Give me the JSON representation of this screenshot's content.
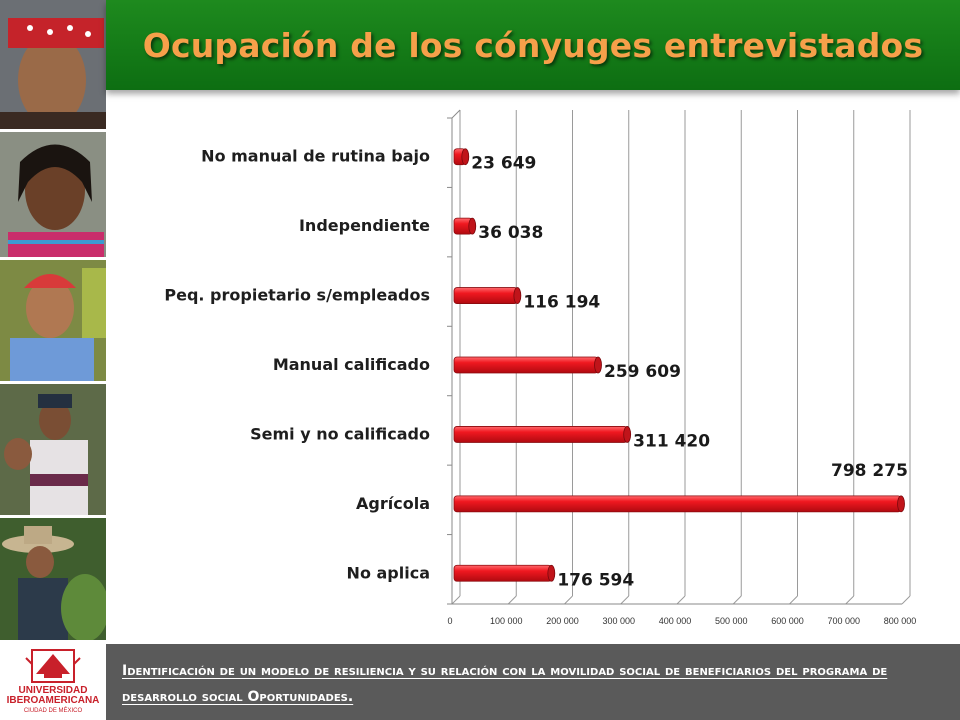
{
  "header": {
    "title": "Ocupación de los cónyuges entrevistados"
  },
  "footer": {
    "text": "Identificación de un modelo de resiliencia y su relación con la movilidad social de beneficiarios del programa de desarrollo social Oportunidades.",
    "logo_line1": "UNIVERSIDAD",
    "logo_line2": "IBEROAMERICANA",
    "logo_line3": "CIUDAD DE MÉXICO"
  },
  "photos": [
    {
      "name": "photo-elder-man"
    },
    {
      "name": "photo-woman"
    },
    {
      "name": "photo-man-cap"
    },
    {
      "name": "photo-woman-child"
    },
    {
      "name": "photo-farmer-hat"
    }
  ],
  "colors": {
    "header": "#1e8a1e",
    "title": "#f6a04a",
    "bar": "#e8121a",
    "bar_dark": "#a80a10",
    "footer": "#5a5a5a"
  },
  "chart_data": {
    "type": "bar",
    "orientation": "horizontal",
    "title": "",
    "categories": [
      "No manual de rutina bajo",
      "Independiente",
      "Peq. propietario s/empleados",
      "Manual calificado",
      "Semi y no calificado",
      "Agrícola",
      "No aplica"
    ],
    "values": [
      23649,
      36038,
      116194,
      259609,
      311420,
      798275,
      176594
    ],
    "value_labels": [
      "23 649",
      "36 038",
      "116 194",
      "259 609",
      "311 420",
      "798 275",
      "176 594"
    ],
    "xlim": [
      0,
      800000
    ],
    "xticks": [
      0,
      100000,
      200000,
      300000,
      400000,
      500000,
      600000,
      700000,
      800000
    ],
    "xtick_labels": [
      "0",
      "100 000",
      "200 000",
      "300 000",
      "400 000",
      "500 000",
      "600 000",
      "700 000",
      "800 000"
    ],
    "grid": true,
    "legend": "none"
  }
}
